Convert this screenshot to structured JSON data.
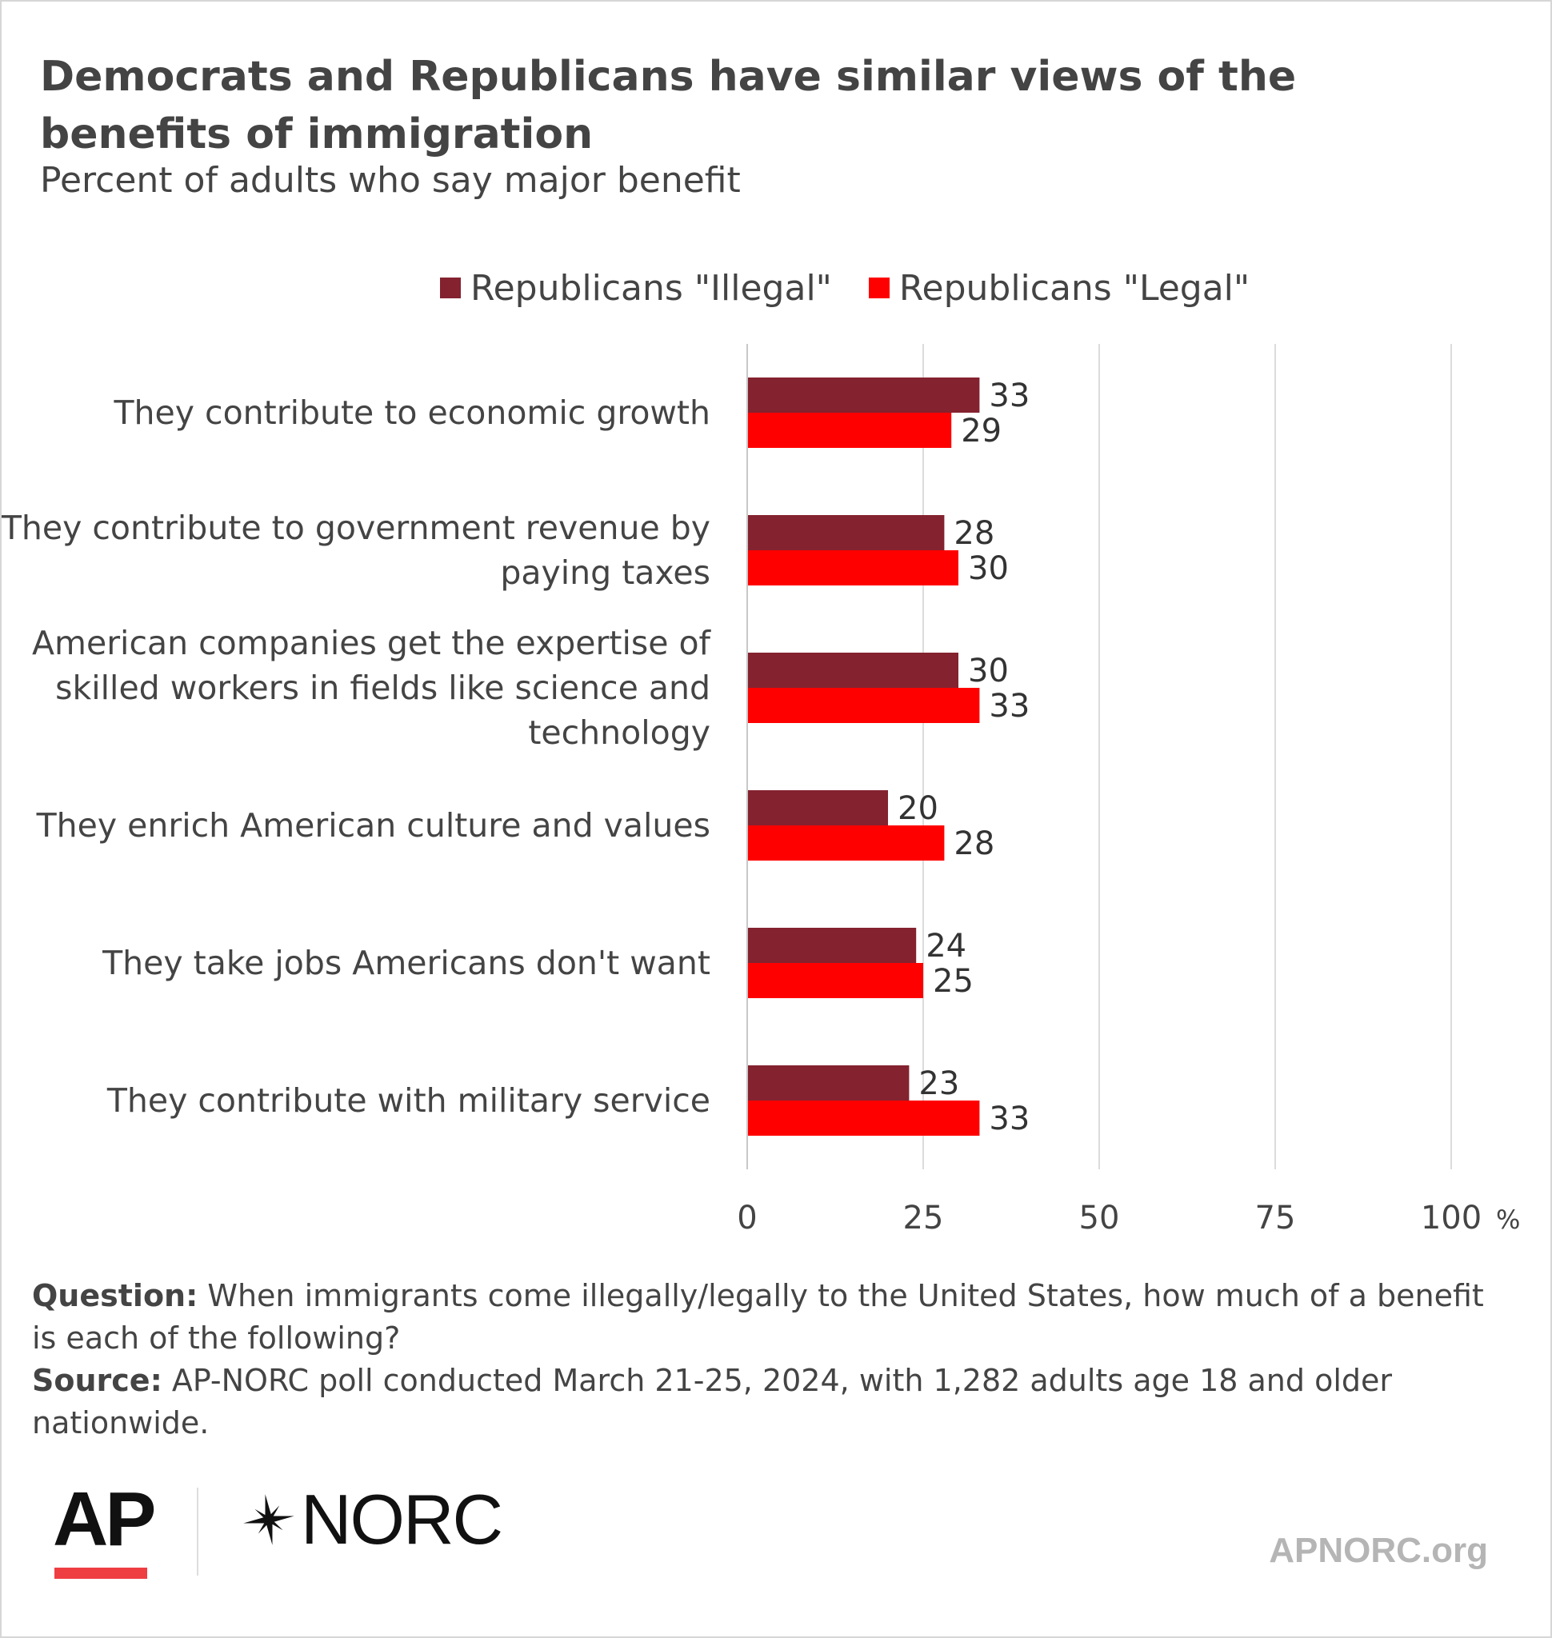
{
  "header": {
    "title": "Democrats and Republicans have similar views of the benefits of immigration",
    "subtitle": "Percent of adults who say major benefit"
  },
  "colors": {
    "illegal": "#84222f",
    "legal": "#ff0000",
    "grid": "#dcdcdc",
    "text": "#444444",
    "accent": "#ef3e42"
  },
  "chart_data": {
    "type": "bar",
    "orientation": "horizontal",
    "categories": [
      "They contribute to economic growth",
      "They contribute to government revenue by paying taxes",
      "American companies get the expertise of skilled workers in fields like science and technology",
      "They enrich American culture and values",
      "They take jobs Americans don't want",
      "They contribute with military service"
    ],
    "series": [
      {
        "name": "Republicans \"Illegal\"",
        "values": [
          33,
          28,
          30,
          20,
          24,
          23
        ]
      },
      {
        "name": "Republicans \"Legal\"",
        "values": [
          29,
          30,
          33,
          28,
          25,
          33
        ]
      }
    ],
    "xlim": [
      0,
      100
    ],
    "xticks": [
      0,
      25,
      50,
      75,
      100
    ],
    "xtick_labels": [
      "0",
      "25",
      "50",
      "75",
      "100"
    ],
    "x_unit": "%",
    "grid": true,
    "legend": "top"
  },
  "notes": {
    "question_label": "Question:",
    "question_text": " When immigrants come illegally/legally to the United States, how much of a benefit is each of the following?",
    "source_label": "Source:",
    "source_text": " AP-NORC poll conducted March 21-25, 2024, with 1,282 adults age 18 and older nationwide."
  },
  "footer": {
    "logo_ap": "AP",
    "logo_norc": "NORC",
    "site": "APNORC.org"
  }
}
